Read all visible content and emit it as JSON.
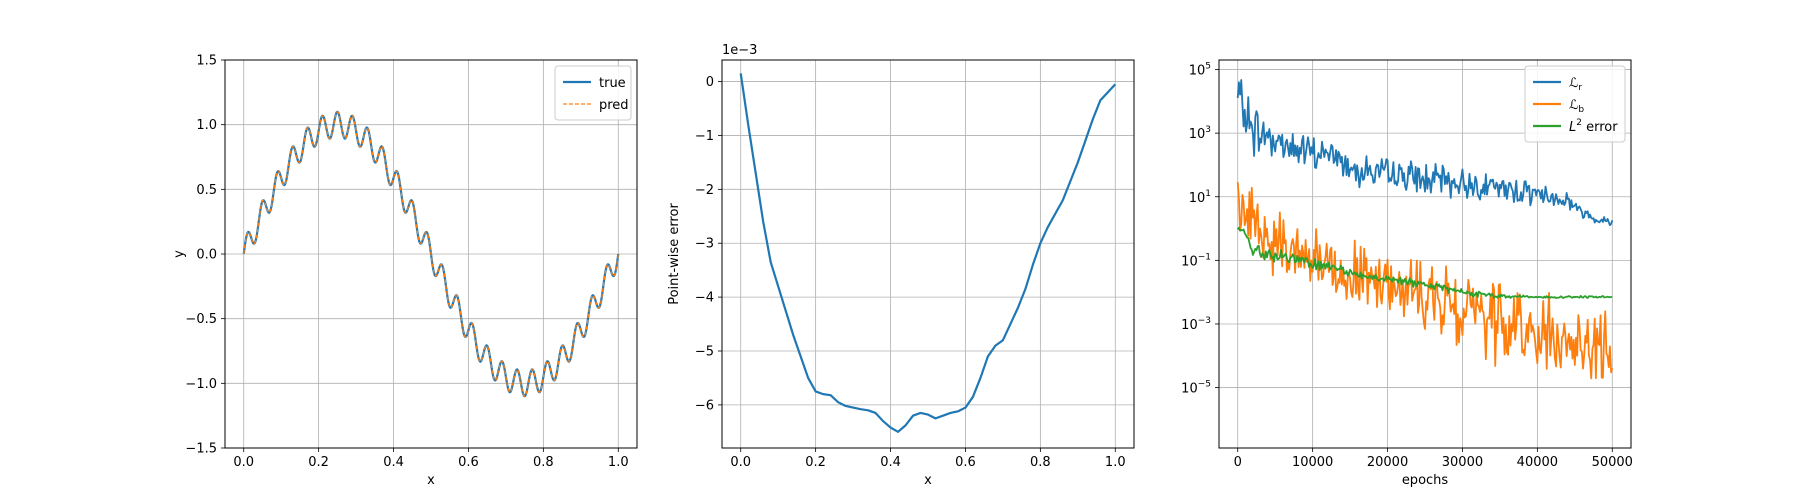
{
  "chart_data": [
    {
      "type": "line",
      "title": "",
      "xlabel": "x",
      "ylabel": "y",
      "xlim": [
        -0.05,
        1.05
      ],
      "ylim": [
        -1.5,
        1.5
      ],
      "xticks": [
        0.0,
        0.2,
        0.4,
        0.6,
        0.8,
        1.0
      ],
      "xtick_labels": [
        "0.0",
        "0.2",
        "0.4",
        "0.6",
        "0.8",
        "1.0"
      ],
      "yticks": [
        -1.5,
        -1.0,
        -0.5,
        0.0,
        0.5,
        1.0,
        1.5
      ],
      "ytick_labels": [
        "−1.5",
        "−1.0",
        "−0.5",
        "0.0",
        "0.5",
        "1.0",
        "1.5"
      ],
      "grid": true,
      "legend_position": "top-right",
      "function": "sin(2*pi*x) + 0.1*sin(50*pi*x)",
      "series": [
        {
          "name": "true",
          "color": "#1f77b4",
          "style": "solid",
          "x": [
            0.0,
            0.02,
            0.04,
            0.06,
            0.08,
            0.1,
            0.12,
            0.14,
            0.16,
            0.18,
            0.2,
            0.22,
            0.24,
            0.26,
            0.28,
            0.3,
            0.32,
            0.34,
            0.36,
            0.38,
            0.4,
            0.42,
            0.44,
            0.46,
            0.48,
            0.5,
            0.52,
            0.54,
            0.56,
            0.58,
            0.6,
            0.62,
            0.64,
            0.66,
            0.68,
            0.7,
            0.72,
            0.74,
            0.76,
            0.78,
            0.8,
            0.82,
            0.84,
            0.86,
            0.88,
            0.9,
            0.92,
            0.94,
            0.96,
            0.98,
            1.0
          ],
          "y": [
            0.0,
            0.158,
            0.191,
            0.31,
            0.54,
            0.588,
            0.647,
            0.837,
            0.91,
            0.913,
            0.951,
            1.035,
            1.0,
            0.951,
            1.0,
            0.951,
            0.837,
            0.788,
            0.729,
            0.635,
            0.588,
            0.454,
            0.309,
            0.248,
            0.066,
            0.0,
            -0.125,
            -0.189,
            -0.306,
            -0.481,
            -0.588,
            -0.671,
            -0.754,
            -0.912,
            -0.962,
            -0.951,
            -1.024,
            -1.059,
            -0.988,
            -0.962,
            -0.951,
            -0.871,
            -0.754,
            -0.671,
            -0.481,
            -0.412,
            -0.306,
            -0.189,
            -0.125,
            -0.066,
            0.0
          ]
        },
        {
          "name": "pred",
          "color": "#ff7f0e",
          "style": "dashed",
          "x": [
            0.0,
            0.02,
            0.04,
            0.06,
            0.08,
            0.1,
            0.12,
            0.14,
            0.16,
            0.18,
            0.2,
            0.22,
            0.24,
            0.26,
            0.28,
            0.3,
            0.32,
            0.34,
            0.36,
            0.38,
            0.4,
            0.42,
            0.44,
            0.46,
            0.48,
            0.5,
            0.52,
            0.54,
            0.56,
            0.58,
            0.6,
            0.62,
            0.64,
            0.66,
            0.68,
            0.7,
            0.72,
            0.74,
            0.76,
            0.78,
            0.8,
            0.82,
            0.84,
            0.86,
            0.88,
            0.9,
            0.92,
            0.94,
            0.96,
            0.98,
            1.0
          ],
          "y": [
            0.0,
            0.158,
            0.191,
            0.31,
            0.54,
            0.588,
            0.647,
            0.837,
            0.91,
            0.913,
            0.951,
            1.035,
            1.0,
            0.951,
            1.0,
            0.951,
            0.837,
            0.788,
            0.729,
            0.635,
            0.588,
            0.454,
            0.309,
            0.248,
            0.066,
            0.0,
            -0.125,
            -0.189,
            -0.306,
            -0.481,
            -0.588,
            -0.671,
            -0.754,
            -0.912,
            -0.962,
            -0.951,
            -1.024,
            -1.059,
            -0.988,
            -0.962,
            -0.951,
            -0.871,
            -0.754,
            -0.671,
            -0.481,
            -0.412,
            -0.306,
            -0.189,
            -0.125,
            -0.066,
            0.0
          ]
        }
      ]
    },
    {
      "type": "line",
      "title": "",
      "xlabel": "x",
      "ylabel": "Point-wise error",
      "y_multiplier_label": "1e−3",
      "xlim": [
        -0.05,
        1.05
      ],
      "ylim": [
        -6.8,
        0.4
      ],
      "xticks": [
        0.0,
        0.2,
        0.4,
        0.6,
        0.8,
        1.0
      ],
      "xtick_labels": [
        "0.0",
        "0.2",
        "0.4",
        "0.6",
        "0.8",
        "1.0"
      ],
      "yticks": [
        0,
        -1,
        -2,
        -3,
        -4,
        -5,
        -6
      ],
      "ytick_labels": [
        "0",
        "−1",
        "−2",
        "−3",
        "−4",
        "−5",
        "−6"
      ],
      "grid": true,
      "series": [
        {
          "name": "",
          "color": "#1f77b4",
          "x": [
            0.0,
            0.02,
            0.04,
            0.06,
            0.08,
            0.1,
            0.12,
            0.14,
            0.16,
            0.18,
            0.2,
            0.22,
            0.24,
            0.26,
            0.28,
            0.3,
            0.32,
            0.34,
            0.36,
            0.38,
            0.4,
            0.42,
            0.44,
            0.46,
            0.48,
            0.5,
            0.52,
            0.54,
            0.56,
            0.58,
            0.6,
            0.62,
            0.64,
            0.66,
            0.68,
            0.7,
            0.72,
            0.74,
            0.76,
            0.78,
            0.8,
            0.82,
            0.84,
            0.86,
            0.88,
            0.9,
            0.92,
            0.94,
            0.96,
            0.98,
            1.0
          ],
          "y": [
            0.15,
            -0.8,
            -1.7,
            -2.6,
            -3.35,
            -3.8,
            -4.25,
            -4.7,
            -5.1,
            -5.5,
            -5.75,
            -5.8,
            -5.82,
            -5.95,
            -6.02,
            -6.05,
            -6.08,
            -6.1,
            -6.15,
            -6.3,
            -6.42,
            -6.5,
            -6.38,
            -6.2,
            -6.15,
            -6.18,
            -6.25,
            -6.2,
            -6.15,
            -6.12,
            -6.05,
            -5.85,
            -5.5,
            -5.1,
            -4.9,
            -4.8,
            -4.5,
            -4.2,
            -3.85,
            -3.4,
            -3.0,
            -2.7,
            -2.45,
            -2.2,
            -1.85,
            -1.5,
            -1.1,
            -0.7,
            -0.35,
            -0.2,
            -0.05
          ]
        }
      ]
    },
    {
      "type": "line",
      "title": "",
      "xlabel": "epochs",
      "ylabel": "",
      "yscale": "log",
      "xlim": [
        -2500,
        52500
      ],
      "ylim_log10": [
        -6.9,
        5.3
      ],
      "xticks": [
        0,
        10000,
        20000,
        30000,
        40000,
        50000
      ],
      "xtick_labels": [
        "0",
        "10000",
        "20000",
        "30000",
        "40000",
        "50000"
      ],
      "yticks_log10": [
        5,
        3,
        1,
        -1,
        -3,
        -5
      ],
      "ytick_bases": [
        "10",
        "10",
        "10",
        "10",
        "10",
        "10"
      ],
      "ytick_exponents": [
        "5",
        "3",
        "1",
        "−1",
        "−3",
        "−5"
      ],
      "grid": true,
      "legend_position": "top-right",
      "series": [
        {
          "name_main": "ℒ",
          "name_sub": "r",
          "name_sup": "",
          "name_tail": "",
          "color": "#1f77b4",
          "x": [
            0,
            2000,
            4000,
            6000,
            8000,
            10000,
            12000,
            14000,
            16000,
            18000,
            20000,
            22000,
            24000,
            26000,
            28000,
            30000,
            32000,
            34000,
            36000,
            38000,
            40000,
            42000,
            44000,
            46000,
            48000,
            50000
          ],
          "log10_y": [
            4.2,
            3.1,
            2.9,
            2.7,
            2.5,
            2.3,
            2.4,
            2.1,
            1.9,
            1.8,
            1.7,
            1.7,
            1.6,
            1.5,
            1.5,
            1.4,
            1.4,
            1.3,
            1.2,
            1.2,
            1.1,
            1.0,
            0.9,
            0.5,
            0.3,
            0.2
          ],
          "noise_amp": [
            0.65,
            0.7,
            0.6,
            0.55,
            0.5,
            0.5,
            0.45,
            0.45,
            0.45,
            0.45,
            0.4,
            0.4,
            0.4,
            0.4,
            0.4,
            0.4,
            0.35,
            0.35,
            0.35,
            0.35,
            0.3,
            0.3,
            0.25,
            0.15,
            0.12,
            0.1
          ]
        },
        {
          "name_main": "ℒ",
          "name_sub": "b",
          "name_sup": "",
          "name_tail": "",
          "color": "#ff7f0e",
          "x": [
            0,
            2000,
            4000,
            6000,
            8000,
            10000,
            12000,
            14000,
            16000,
            18000,
            20000,
            22000,
            24000,
            26000,
            28000,
            30000,
            32000,
            34000,
            36000,
            38000,
            40000,
            42000,
            44000,
            46000,
            48000,
            50000
          ],
          "log10_y": [
            1.0,
            0.2,
            -0.3,
            -0.5,
            -0.8,
            -1.0,
            -1.1,
            -1.2,
            -1.4,
            -1.5,
            -1.6,
            -1.8,
            -2.0,
            -2.2,
            -2.3,
            -2.6,
            -2.8,
            -2.9,
            -3.1,
            -3.2,
            -3.3,
            -3.4,
            -3.5,
            -3.6,
            -3.7,
            -3.8
          ],
          "noise_amp": [
            0.8,
            1.0,
            1.0,
            0.9,
            0.9,
            0.9,
            0.9,
            0.9,
            0.9,
            0.9,
            0.9,
            0.9,
            0.9,
            0.9,
            1.0,
            1.0,
            1.1,
            1.1,
            1.0,
            1.0,
            1.0,
            1.0,
            0.9,
            0.9,
            0.9,
            1.0
          ]
        },
        {
          "name_main": "L",
          "name_sub": "",
          "name_sup": "2",
          "name_tail": " error",
          "color": "#2ca02c",
          "x": [
            0,
            2000,
            4000,
            6000,
            8000,
            10000,
            12000,
            14000,
            16000,
            18000,
            20000,
            22000,
            24000,
            26000,
            28000,
            30000,
            32000,
            34000,
            36000,
            38000,
            40000,
            42000,
            44000,
            46000,
            48000,
            50000
          ],
          "log10_y": [
            0.0,
            -0.6,
            -0.8,
            -0.9,
            -1.0,
            -1.1,
            -1.2,
            -1.3,
            -1.45,
            -1.55,
            -1.6,
            -1.65,
            -1.75,
            -1.8,
            -1.9,
            -2.0,
            -2.05,
            -2.1,
            -2.15,
            -2.15,
            -2.15,
            -2.15,
            -2.15,
            -2.15,
            -2.15,
            -2.15
          ],
          "noise_amp": [
            0.3,
            0.25,
            0.2,
            0.18,
            0.15,
            0.14,
            0.13,
            0.12,
            0.12,
            0.1,
            0.1,
            0.1,
            0.1,
            0.1,
            0.1,
            0.1,
            0.08,
            0.07,
            0.05,
            0.04,
            0.03,
            0.03,
            0.03,
            0.03,
            0.03,
            0.03
          ]
        }
      ]
    }
  ]
}
